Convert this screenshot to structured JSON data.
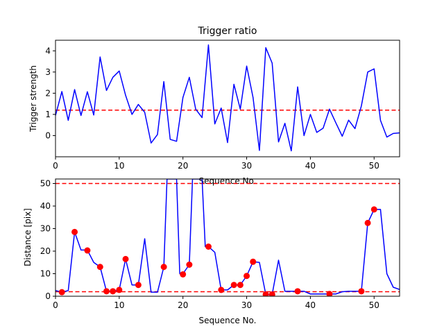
{
  "chart_data": [
    {
      "type": "line",
      "title": "Trigger ratio",
      "xlabel": "Sequence No.",
      "ylabel": "Trigger strength",
      "xlim": [
        0,
        54
      ],
      "ylim": [
        -1.0,
        4.5
      ],
      "xticks": [
        0,
        10,
        20,
        30,
        40,
        50
      ],
      "yticks": [
        0,
        1,
        2,
        3,
        4
      ],
      "grid": false,
      "series": [
        {
          "color": "#0000ff",
          "x": [
            0,
            1,
            2,
            3,
            4,
            5,
            6,
            7,
            8,
            9,
            10,
            11,
            12,
            13,
            14,
            15,
            16,
            17,
            18,
            19,
            20,
            21,
            22,
            23,
            24,
            25,
            26,
            27,
            28,
            29,
            30,
            31,
            32,
            33,
            34,
            35,
            36,
            37,
            38,
            39,
            40,
            41,
            42,
            43,
            44,
            45,
            46,
            47,
            48,
            49,
            50,
            51,
            52,
            53,
            54
          ],
          "values": [
            0.95,
            2.08,
            0.72,
            2.17,
            0.95,
            2.07,
            0.97,
            3.71,
            2.13,
            2.75,
            3.05,
            1.9,
            1.0,
            1.47,
            1.1,
            -0.35,
            0.05,
            2.55,
            -0.18,
            -0.27,
            1.8,
            2.75,
            1.25,
            0.85,
            4.28,
            0.55,
            1.3,
            -0.33,
            2.42,
            1.25,
            3.28,
            1.8,
            -0.7,
            4.15,
            3.42,
            -0.3,
            0.58,
            -0.72,
            2.3,
            0.0,
            1.0,
            0.15,
            0.35,
            1.25,
            0.6,
            -0.03,
            0.73,
            0.33,
            1.4,
            3.0,
            3.15,
            0.72,
            -0.07,
            0.1,
            0.13
          ]
        }
      ],
      "hlines": [
        {
          "y": 1.2,
          "color": "#ff0000",
          "style": "dashed"
        }
      ]
    },
    {
      "type": "line",
      "title": "",
      "xlabel": "Sequence No.",
      "ylabel": "Distance [pix]",
      "xlim": [
        0,
        54
      ],
      "ylim": [
        0,
        52
      ],
      "xticks": [
        0,
        10,
        20,
        30,
        40,
        50
      ],
      "yticks": [
        0,
        10,
        20,
        30,
        40,
        50
      ],
      "grid": false,
      "series": [
        {
          "color": "#0000ff",
          "x": [
            0,
            1,
            2,
            3,
            4,
            5,
            6,
            7,
            8,
            9,
            10,
            11,
            12,
            13,
            14,
            15,
            16,
            17,
            17.5,
            18,
            19,
            19.5,
            20,
            21,
            21.5,
            22,
            23,
            23.5,
            24,
            25,
            26,
            27,
            28,
            29,
            30,
            31,
            32,
            33,
            34,
            35,
            36,
            37,
            38,
            39,
            40,
            41,
            42,
            43,
            44,
            45,
            46,
            47,
            48,
            49,
            50,
            51,
            52,
            53,
            54
          ],
          "values": [
            2.5,
            1.8,
            2.5,
            28.5,
            20.5,
            20.5,
            15.0,
            13.0,
            2.2,
            2.2,
            2.8,
            16.5,
            5.0,
            5.0,
            25.5,
            1.8,
            1.8,
            13.0,
            52,
            52,
            52,
            10.0,
            10.0,
            14.0,
            52,
            52,
            52,
            22.0,
            22.0,
            19.5,
            2.8,
            2.8,
            5.0,
            5.0,
            9.0,
            15.3,
            15.0,
            0.8,
            0.8,
            16.0,
            2.2,
            2.2,
            2.2,
            2.2,
            1.0,
            1.0,
            1.0,
            1.0,
            1.0,
            2.0,
            2.2,
            2.2,
            2.2,
            32.5,
            38.5,
            38.5,
            10.0,
            4.0,
            3.0
          ]
        }
      ],
      "markers": {
        "color": "#ff0000",
        "x": [
          1,
          3,
          5,
          7,
          8,
          9,
          10,
          11,
          13,
          17,
          20,
          21,
          24,
          26,
          28,
          29,
          30,
          31,
          33,
          34,
          38,
          43,
          48,
          49,
          50
        ],
        "values": [
          1.8,
          28.5,
          20.3,
          13.0,
          2.2,
          2.2,
          2.8,
          16.5,
          5.0,
          13.0,
          9.7,
          14.0,
          22.0,
          2.8,
          5.0,
          5.0,
          9.0,
          15.3,
          0.8,
          0.8,
          2.2,
          1.0,
          2.2,
          32.5,
          38.5
        ]
      },
      "hlines": [
        {
          "y": 50.0,
          "color": "#ff0000",
          "style": "dashed"
        },
        {
          "y": 2.0,
          "color": "#ff0000",
          "style": "dashed"
        }
      ]
    }
  ]
}
